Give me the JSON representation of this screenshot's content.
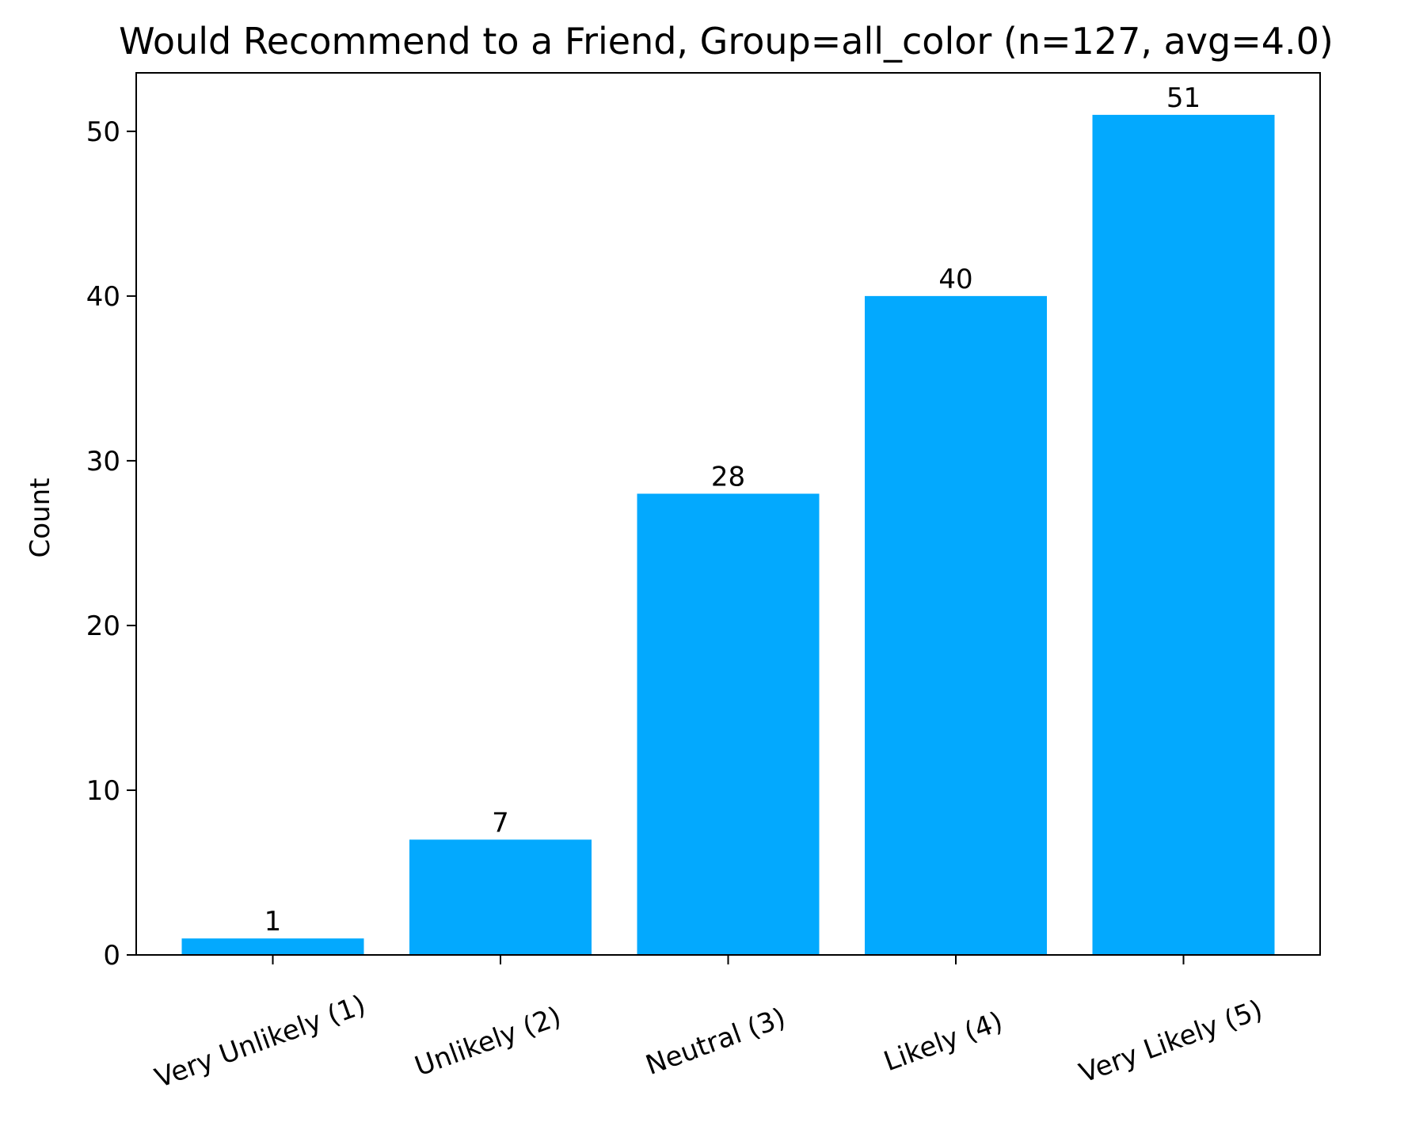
{
  "chart_data": {
    "type": "bar",
    "title": "Would Recommend to a Friend, Group=all_color (n=127, avg=4.0)",
    "xlabel": "",
    "ylabel": "Count",
    "categories": [
      "Very Unlikely (1)",
      "Unlikely (2)",
      "Neutral (3)",
      "Likely (4)",
      "Very Likely (5)"
    ],
    "values": [
      1,
      7,
      28,
      40,
      51
    ],
    "data_labels": [
      "1",
      "7",
      "28",
      "40",
      "51"
    ],
    "yticks": [
      0,
      10,
      20,
      30,
      40,
      50
    ],
    "ylim": [
      0,
      53.55
    ],
    "bar_color": "#03a9fe",
    "grid": false,
    "legend": "none"
  }
}
